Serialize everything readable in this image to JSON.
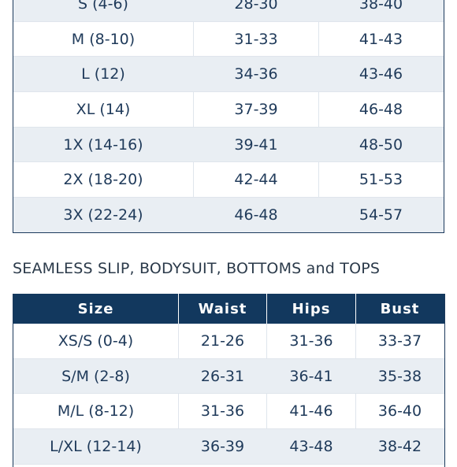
{
  "table1": {
    "rows": [
      [
        "S (4-6)",
        "28-30",
        "38-40"
      ],
      [
        "M (8-10)",
        "31-33",
        "41-43"
      ],
      [
        "L (12)",
        "34-36",
        "43-46"
      ],
      [
        "XL (14)",
        "37-39",
        "46-48"
      ],
      [
        "1X (14-16)",
        "39-41",
        "48-50"
      ],
      [
        "2X (18-20)",
        "42-44",
        "51-53"
      ],
      [
        "3X (22-24)",
        "46-48",
        "54-57"
      ]
    ]
  },
  "section2": {
    "heading": "SEAMLESS SLIP, BODYSUIT, BOTTOMS and TOPS"
  },
  "table2": {
    "headers": [
      "Size",
      "Waist",
      "Hips",
      "Bust"
    ],
    "rows": [
      [
        "XS/S (0-4)",
        "21-26",
        "31-36",
        "33-37"
      ],
      [
        "S/M (2-8)",
        "26-31",
        "36-41",
        "35-38"
      ],
      [
        "M/L (8-12)",
        "31-36",
        "41-46",
        "36-40"
      ],
      [
        "L/XL (12-14)",
        "36-39",
        "43-48",
        "38-42"
      ]
    ]
  }
}
